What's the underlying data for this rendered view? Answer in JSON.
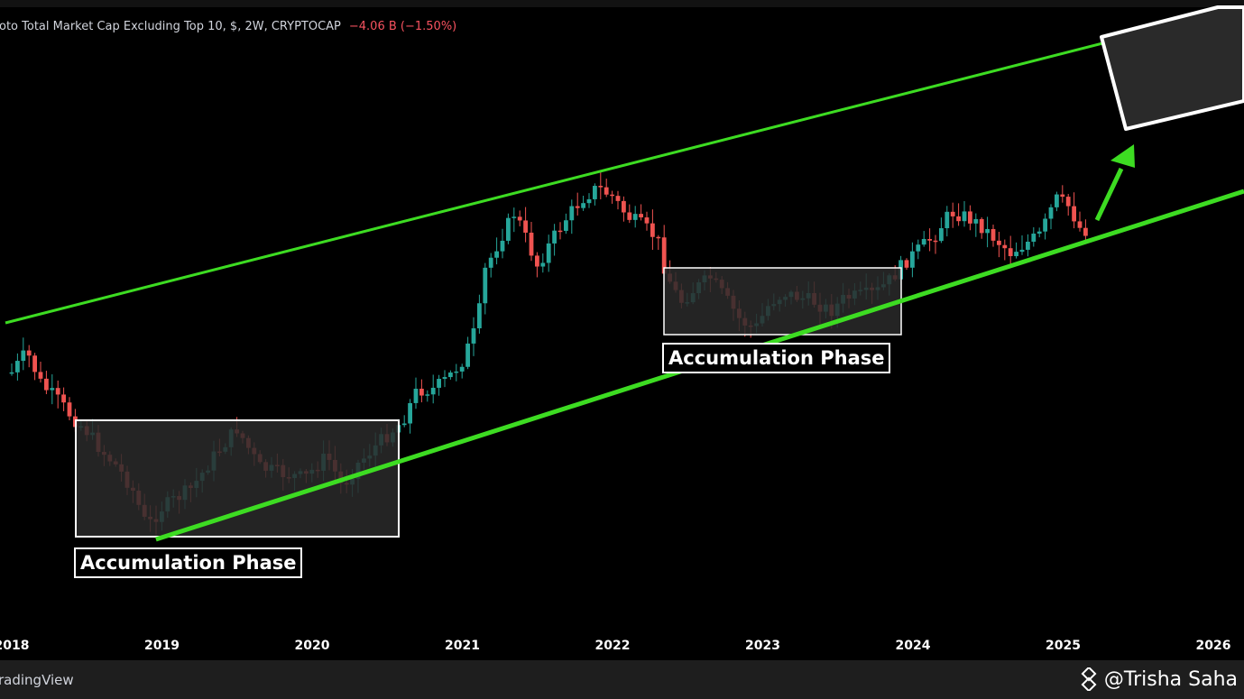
{
  "header": {
    "symbol_title": "oto Total Market Cap Excluding Top 10, $, 2W, CRYPTOCAP",
    "change": "−4.06 B (−1.50%)"
  },
  "footer": {
    "brand": "radingView",
    "watermark": "@Trisha Saha",
    "watermark_icon": "binance-square-icon"
  },
  "colors": {
    "background": "#000000",
    "up_candle": "#26a69a",
    "down_candle": "#ef5350",
    "channel_line": "#3ddc22",
    "text_negative": "#f7525f",
    "box_border": "#ffffff",
    "box_fill": "#2a2a2a"
  },
  "annotations": [
    {
      "label": "Accumulation Phase",
      "period": "2018-2020"
    },
    {
      "label": "Accumulation Phase",
      "period": "2022-2023"
    }
  ],
  "chart_data": {
    "type": "candlestick",
    "scale": "log",
    "interval": "2W",
    "x_range": [
      2018.0,
      2026.0
    ],
    "xlabel": "",
    "ylabel": "",
    "x_ticks": [
      "2018",
      "2019",
      "2020",
      "2021",
      "2022",
      "2023",
      "2024",
      "2025",
      "2026"
    ],
    "y_axis_visible": false,
    "grid": false,
    "series": [
      {
        "name": "",
        "points": [
          [
            2018.0,
            413
          ],
          [
            2018.1,
            390
          ],
          [
            2018.2,
            427
          ],
          [
            2018.3,
            442
          ],
          [
            2018.4,
            462
          ],
          [
            2018.5,
            478
          ],
          [
            2018.6,
            500
          ],
          [
            2018.7,
            517
          ],
          [
            2018.8,
            541
          ],
          [
            2018.9,
            584
          ],
          [
            2019.0,
            563
          ],
          [
            2019.2,
            541
          ],
          [
            2019.35,
            505
          ],
          [
            2019.5,
            475
          ],
          [
            2019.65,
            518
          ],
          [
            2019.8,
            525
          ],
          [
            2019.95,
            530
          ],
          [
            2020.1,
            505
          ],
          [
            2020.2,
            540
          ],
          [
            2020.3,
            515
          ],
          [
            2020.45,
            490
          ],
          [
            2020.6,
            467
          ],
          [
            2020.7,
            432
          ],
          [
            2020.8,
            432
          ],
          [
            2020.9,
            420
          ],
          [
            2021.0,
            400
          ],
          [
            2021.1,
            360
          ],
          [
            2021.15,
            300
          ],
          [
            2021.25,
            265
          ],
          [
            2021.35,
            235
          ],
          [
            2021.4,
            255
          ],
          [
            2021.5,
            295
          ],
          [
            2021.6,
            265
          ],
          [
            2021.7,
            240
          ],
          [
            2021.8,
            220
          ],
          [
            2021.9,
            208
          ],
          [
            2022.0,
            218
          ],
          [
            2022.1,
            240
          ],
          [
            2022.2,
            250
          ],
          [
            2022.3,
            265
          ],
          [
            2022.35,
            300
          ],
          [
            2022.45,
            335
          ],
          [
            2022.55,
            320
          ],
          [
            2022.65,
            308
          ],
          [
            2022.75,
            330
          ],
          [
            2022.85,
            355
          ],
          [
            2022.95,
            365
          ],
          [
            2023.05,
            335
          ],
          [
            2023.15,
            325
          ],
          [
            2023.25,
            330
          ],
          [
            2023.35,
            335
          ],
          [
            2023.45,
            345
          ],
          [
            2023.55,
            330
          ],
          [
            2023.65,
            328
          ],
          [
            2023.75,
            325
          ],
          [
            2023.85,
            310
          ],
          [
            2023.95,
            290
          ],
          [
            2024.05,
            275
          ],
          [
            2024.15,
            260
          ],
          [
            2024.25,
            235
          ],
          [
            2024.35,
            240
          ],
          [
            2024.45,
            250
          ],
          [
            2024.55,
            265
          ],
          [
            2024.65,
            280
          ],
          [
            2024.75,
            270
          ],
          [
            2024.85,
            260
          ],
          [
            2024.95,
            220
          ],
          [
            2025.05,
            230
          ],
          [
            2025.1,
            252
          ],
          [
            2025.15,
            255
          ]
        ]
      },
      {
        "name": "",
        "role": "channel-upper",
        "points": [
          [
            2018.0,
            358
          ],
          [
            2026.0,
            8
          ]
        ]
      },
      {
        "name": "",
        "role": "channel-lower",
        "points": [
          [
            2018.9,
            598
          ],
          [
            2026.0,
            212
          ]
        ]
      },
      {
        "name": "",
        "role": "target-box",
        "points": [
          [
            2025.2,
            45
          ],
          [
            2026.0,
            12
          ]
        ]
      }
    ]
  }
}
